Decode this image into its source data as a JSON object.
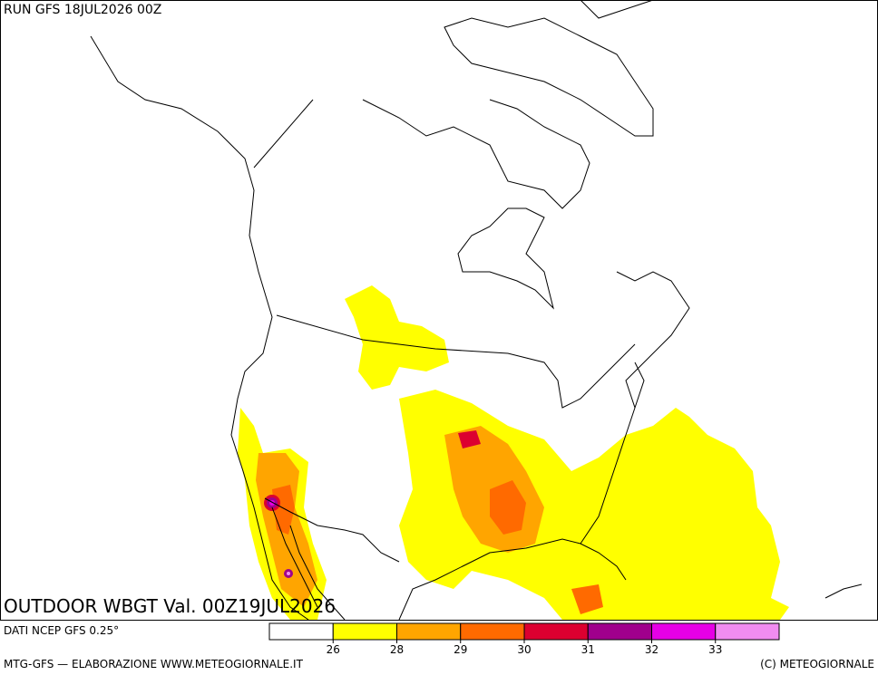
{
  "header": {
    "run": "RUN GFS 18JUL2026 00Z"
  },
  "map": {
    "title": "OUTDOOR WBGT Val. 00Z19JUL2026"
  },
  "legend": {
    "source": "DATI NCEP GFS 0.25°",
    "colors": [
      "#ffffff",
      "#ffff00",
      "#ffa500",
      "#ff6a00",
      "#dc0030",
      "#a0008c",
      "#e600e6",
      "#f08cf0"
    ],
    "ticks": [
      26,
      28,
      29,
      30,
      31,
      32,
      33
    ]
  },
  "footer": {
    "left": "MTG-GFS — ELABORAZIONE WWW.METEOGIORNALE.IT",
    "right": "(C) METEOGIORNALE"
  }
}
